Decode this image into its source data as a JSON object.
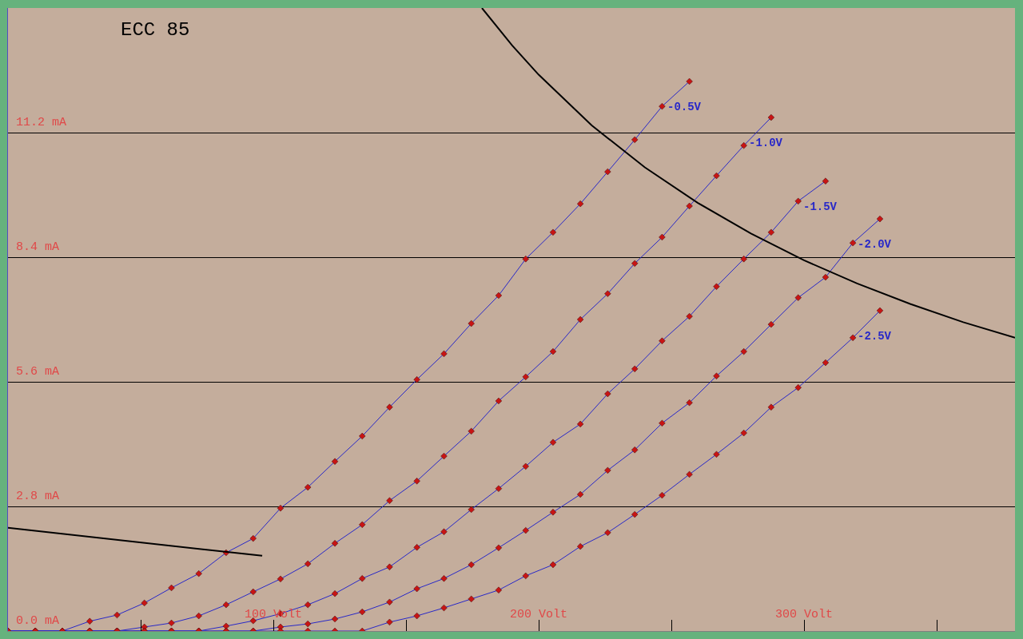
{
  "chart_data": {
    "type": "line",
    "title": "ECC 85",
    "x": [
      0,
      10.3,
      20.5,
      30.8,
      41.1,
      51.4,
      61.6,
      71.9,
      82.2,
      92.4,
      102.7,
      113.0,
      123.2,
      133.5,
      143.8,
      154.1,
      164.3,
      174.6,
      184.9,
      195.1,
      205.4,
      215.7,
      226.0,
      236.2,
      246.5,
      256.8,
      267.0,
      277.3,
      287.6,
      297.8,
      308.1,
      318.4,
      328.6
    ],
    "series": [
      {
        "name": "-0.5V",
        "color": "#2828c8",
        "values": [
          0,
          0,
          0,
          0.22,
          0.36,
          0.63,
          0.97,
          1.29,
          1.76,
          2.08,
          2.76,
          3.23,
          3.81,
          4.38,
          5.03,
          5.65,
          6.23,
          6.91,
          7.54,
          8.36,
          8.96,
          9.6,
          10.32,
          11.04,
          11.79,
          12.35,
          null,
          null,
          null,
          null,
          null,
          null,
          null
        ]
      },
      {
        "name": "-1.0V",
        "color": "#2828c8",
        "values": [
          0,
          0,
          0,
          0,
          0,
          0.09,
          0.18,
          0.34,
          0.59,
          0.88,
          1.17,
          1.51,
          1.97,
          2.39,
          2.93,
          3.37,
          3.93,
          4.49,
          5.17,
          5.71,
          6.28,
          7.0,
          7.58,
          8.26,
          8.85,
          9.55,
          10.23,
          10.91,
          11.54,
          null,
          null,
          null,
          null
        ]
      },
      {
        "name": "-1.5V",
        "color": "#2828c8",
        "values": [
          0,
          0,
          0,
          0,
          0,
          0,
          0,
          0,
          0.11,
          0.23,
          0.39,
          0.59,
          0.84,
          1.18,
          1.44,
          1.88,
          2.23,
          2.73,
          3.2,
          3.7,
          4.24,
          4.65,
          5.33,
          5.89,
          6.52,
          7.07,
          7.74,
          8.36,
          8.96,
          9.66,
          10.11,
          null,
          null
        ]
      },
      {
        "name": "-2.0V",
        "color": "#2828c8",
        "values": [
          0,
          0,
          0,
          0,
          0,
          0,
          0,
          0,
          0,
          0,
          0.09,
          0.16,
          0.27,
          0.43,
          0.65,
          0.95,
          1.18,
          1.49,
          1.87,
          2.26,
          2.67,
          3.07,
          3.61,
          4.07,
          4.67,
          5.13,
          5.73,
          6.28,
          6.89,
          7.49,
          7.95,
          8.72,
          9.26
        ]
      },
      {
        "name": "-2.5V",
        "color": "#2828c8",
        "values": [
          0,
          0,
          0,
          0,
          0,
          0,
          0,
          0,
          0,
          0,
          0,
          0,
          0,
          0,
          0.2,
          0.34,
          0.52,
          0.72,
          0.92,
          1.24,
          1.49,
          1.9,
          2.21,
          2.62,
          3.05,
          3.52,
          3.97,
          4.45,
          5.03,
          5.47,
          6.03,
          6.59,
          7.2
        ]
      },
      {
        "color": "#000000",
        "marker": "none",
        "x": [
          178.6,
          190,
          200,
          220,
          240,
          260,
          280,
          300,
          320,
          340,
          360,
          379.5
        ],
        "values": [
          14.0,
          13.16,
          12.5,
          11.36,
          10.42,
          9.62,
          8.93,
          8.33,
          7.81,
          7.35,
          6.94,
          6.59
        ]
      },
      {
        "color": "#000000",
        "marker": "none",
        "x": [
          0,
          95.8
        ],
        "values": [
          2.32,
          1.69
        ]
      }
    ],
    "marker": "diamond",
    "xlim": [
      0,
      379.5
    ],
    "ylim": [
      0,
      14
    ],
    "xticks": [
      {
        "value": 50,
        "label": null
      },
      {
        "value": 100,
        "label": "100 Volt"
      },
      {
        "value": 150,
        "label": null
      },
      {
        "value": 200,
        "label": "200 Volt"
      },
      {
        "value": 250,
        "label": null
      },
      {
        "value": 300,
        "label": "300 Volt"
      },
      {
        "value": 350,
        "label": null
      }
    ],
    "yticks": [
      {
        "value": 0,
        "label": "0.0 mA"
      },
      {
        "value": 2.8,
        "label": "2.8 mA"
      },
      {
        "value": 5.6,
        "label": "5.6 mA"
      },
      {
        "value": 8.4,
        "label": "8.4 mA"
      },
      {
        "value": 11.2,
        "label": "11.2 mA"
      }
    ],
    "grid": "y",
    "legend": false
  }
}
